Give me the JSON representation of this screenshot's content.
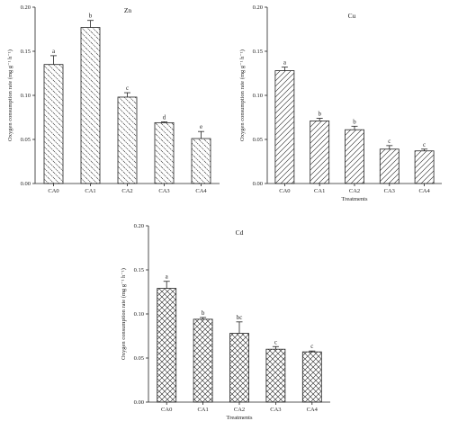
{
  "colors": {
    "ink": "#222222",
    "fill": "#ffffff"
  },
  "chart_data": [
    {
      "type": "bar",
      "title": "Zn",
      "xlabel": "",
      "ylabel": "Oxygen consumption rate (mg g⁻¹ h⁻¹)",
      "ylim": [
        0,
        0.2
      ],
      "yticks": [
        "0.00",
        "0.05",
        "0.10",
        "0.15",
        "0.20"
      ],
      "categories": [
        "CA0",
        "CA1",
        "CA2",
        "CA3",
        "CA4"
      ],
      "values": [
        0.135,
        0.177,
        0.098,
        0.069,
        0.051
      ],
      "errors": [
        0.01,
        0.008,
        0.005,
        0.001,
        0.008
      ],
      "labels": [
        "a",
        "b",
        "c",
        "d",
        "e"
      ],
      "pattern": "backslash",
      "grid": false
    },
    {
      "type": "bar",
      "title": "Cu",
      "xlabel": "Treatments",
      "ylabel": "Oxygen consumption rate (mg g⁻¹ h⁻¹)",
      "ylim": [
        0,
        0.2
      ],
      "yticks": [
        "0.00",
        "0.05",
        "0.10",
        "0.15",
        "0.20"
      ],
      "categories": [
        "CA0",
        "CA1",
        "CA2",
        "CA3",
        "CA4"
      ],
      "values": [
        0.128,
        0.071,
        0.061,
        0.039,
        0.037
      ],
      "errors": [
        0.004,
        0.003,
        0.004,
        0.004,
        0.002
      ],
      "labels": [
        "a",
        "b",
        "b",
        "c",
        "c"
      ],
      "pattern": "slash",
      "grid": false
    },
    {
      "type": "bar",
      "title": "Cd",
      "xlabel": "Treatments",
      "ylabel": "Oxygen consumption rate (mg g⁻¹ h⁻¹)",
      "ylim": [
        0,
        0.2
      ],
      "yticks": [
        "0.00",
        "0.05",
        "0.10",
        "0.15",
        "0.20"
      ],
      "categories": [
        "CA0",
        "CA1",
        "CA2",
        "CA3",
        "CA4"
      ],
      "values": [
        0.129,
        0.094,
        0.078,
        0.06,
        0.057
      ],
      "errors": [
        0.008,
        0.002,
        0.013,
        0.003,
        0.001
      ],
      "labels": [
        "a",
        "b",
        "bc",
        "c",
        "c"
      ],
      "pattern": "crosshatch",
      "grid": false
    }
  ]
}
